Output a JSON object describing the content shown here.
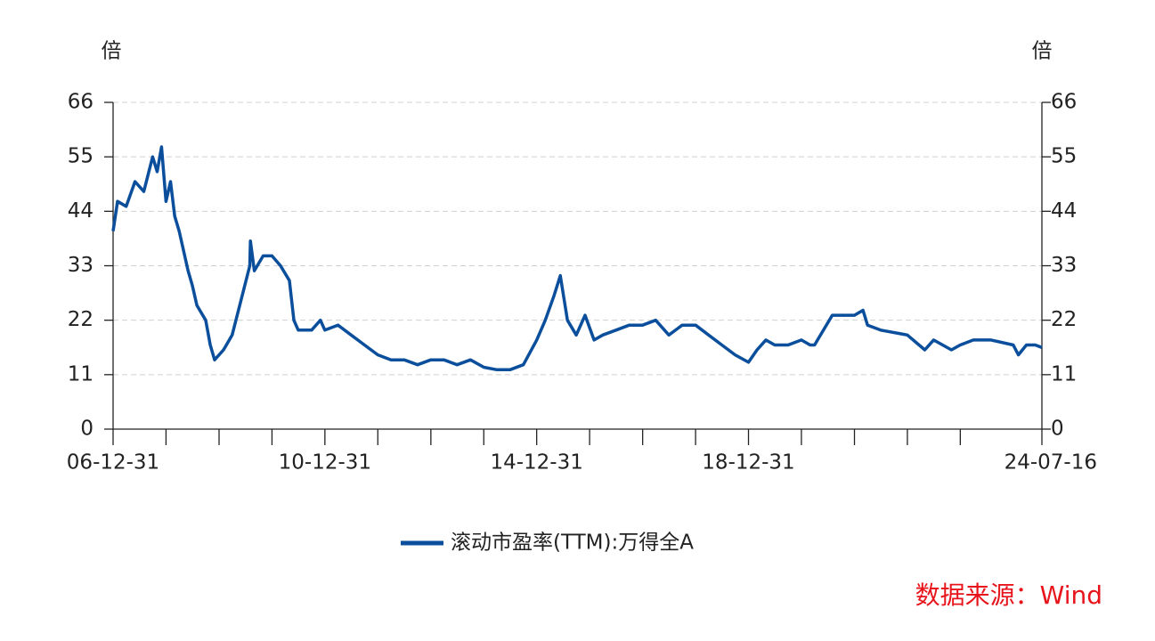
{
  "chart_data": {
    "type": "line",
    "y_label": "倍",
    "y2_label": "倍",
    "source": "数据来源：Wind",
    "xlim": [
      "06-12-31",
      "24-07-16"
    ],
    "xticks": [
      "06-12-31",
      "10-12-31",
      "14-12-31",
      "18-12-31",
      "24-07-16"
    ],
    "x_minor_ticks": [
      "07-12-31",
      "08-12-31",
      "09-12-31",
      "11-12-31",
      "12-12-31",
      "13-12-31",
      "15-12-31",
      "16-12-31",
      "17-12-31",
      "19-12-31",
      "20-12-31",
      "21-12-31",
      "22-12-31"
    ],
    "ylim": [
      0,
      66
    ],
    "yticks": [
      0,
      11,
      22,
      33,
      44,
      55,
      66
    ],
    "grid": true,
    "x": [
      "06-12-31",
      "07-01-31",
      "07-03-31",
      "07-05-31",
      "07-07-31",
      "07-09-30",
      "07-10-31",
      "07-11-30",
      "07-12-31",
      "08-01-31",
      "08-02-29",
      "08-03-31",
      "08-05-31",
      "08-06-30",
      "08-07-31",
      "08-09-30",
      "08-10-31",
      "08-11-30",
      "09-01-31",
      "09-03-31",
      "09-05-31",
      "09-07-31",
      "09-08-04",
      "09-08-31",
      "09-10-31",
      "09-12-31",
      "10-02-28",
      "10-04-30",
      "10-05-31",
      "10-06-30",
      "10-09-30",
      "10-11-30",
      "10-12-31",
      "11-03-31",
      "11-06-30",
      "11-09-30",
      "11-12-31",
      "12-03-31",
      "12-06-30",
      "12-09-30",
      "12-12-31",
      "13-03-31",
      "13-06-30",
      "13-09-30",
      "13-12-31",
      "14-03-31",
      "14-06-30",
      "14-09-30",
      "14-12-31",
      "15-02-28",
      "15-04-30",
      "15-06-12",
      "15-07-31",
      "15-09-30",
      "15-11-30",
      "16-01-31",
      "16-03-31",
      "16-06-30",
      "16-09-30",
      "16-12-31",
      "17-03-31",
      "17-06-30",
      "17-09-30",
      "17-12-31",
      "18-03-31",
      "18-06-30",
      "18-09-30",
      "18-12-31",
      "19-02-28",
      "19-04-30",
      "19-06-30",
      "19-09-30",
      "19-12-31",
      "20-02-29",
      "20-03-31",
      "20-07-31",
      "20-12-31",
      "21-02-28",
      "21-03-31",
      "21-06-30",
      "21-12-31",
      "22-04-30",
      "22-06-30",
      "22-10-31",
      "22-12-31",
      "23-03-31",
      "23-07-31",
      "23-12-31",
      "24-02-05",
      "24-03-31",
      "24-05-31",
      "24-07-16"
    ],
    "series": [
      {
        "name": "滚动市盈率(TTM):万得全A",
        "color": "#0b4f9c",
        "values": [
          40,
          46,
          45,
          50,
          48,
          55,
          52,
          57,
          46,
          50,
          43,
          40,
          32,
          29,
          25,
          22,
          17,
          14,
          16,
          19,
          26,
          33,
          38,
          32,
          35,
          35,
          33,
          30,
          22,
          20,
          20,
          22,
          20,
          21,
          19,
          17,
          15,
          14,
          14,
          13,
          14,
          14,
          13,
          14,
          12.5,
          12,
          12,
          13,
          18,
          22,
          27,
          31,
          22,
          19,
          23,
          18,
          19,
          20,
          21,
          21,
          22,
          19,
          21,
          21,
          19,
          17,
          15,
          13.5,
          16,
          18,
          17,
          17,
          18,
          17,
          17,
          23,
          23,
          24,
          21,
          20,
          19,
          16,
          18,
          16,
          17,
          18,
          18,
          17,
          15,
          17,
          17,
          16.5
        ]
      }
    ]
  }
}
